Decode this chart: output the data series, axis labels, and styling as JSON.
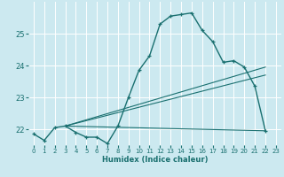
{
  "title": "",
  "xlabel": "Humidex (Indice chaleur)",
  "ylabel": "",
  "bg_color": "#cce9f0",
  "line_color": "#1a7070",
  "grid_color": "#ffffff",
  "xlim": [
    -0.5,
    23.5
  ],
  "ylim": [
    21.5,
    26.0
  ],
  "yticks": [
    22,
    23,
    24,
    25
  ],
  "xticks": [
    0,
    1,
    2,
    3,
    4,
    5,
    6,
    7,
    8,
    9,
    10,
    11,
    12,
    13,
    14,
    15,
    16,
    17,
    18,
    19,
    20,
    21,
    22,
    23
  ],
  "main_line": [
    [
      0,
      21.85
    ],
    [
      1,
      21.65
    ],
    [
      2,
      22.05
    ],
    [
      3,
      22.1
    ],
    [
      4,
      21.9
    ],
    [
      5,
      21.75
    ],
    [
      6,
      21.75
    ],
    [
      7,
      21.55
    ],
    [
      8,
      22.1
    ],
    [
      9,
      23.0
    ],
    [
      10,
      23.85
    ],
    [
      11,
      24.3
    ],
    [
      12,
      25.3
    ],
    [
      13,
      25.55
    ],
    [
      14,
      25.6
    ],
    [
      15,
      25.65
    ],
    [
      16,
      25.1
    ],
    [
      17,
      24.75
    ],
    [
      18,
      24.1
    ],
    [
      19,
      24.15
    ],
    [
      20,
      23.95
    ],
    [
      21,
      23.35
    ],
    [
      22,
      21.95
    ]
  ],
  "line_flat": [
    [
      3,
      22.1
    ],
    [
      22,
      21.95
    ]
  ],
  "line_upper": [
    [
      3,
      22.1
    ],
    [
      22,
      23.95
    ]
  ],
  "line_mid": [
    [
      3,
      22.1
    ],
    [
      22,
      23.7
    ]
  ]
}
